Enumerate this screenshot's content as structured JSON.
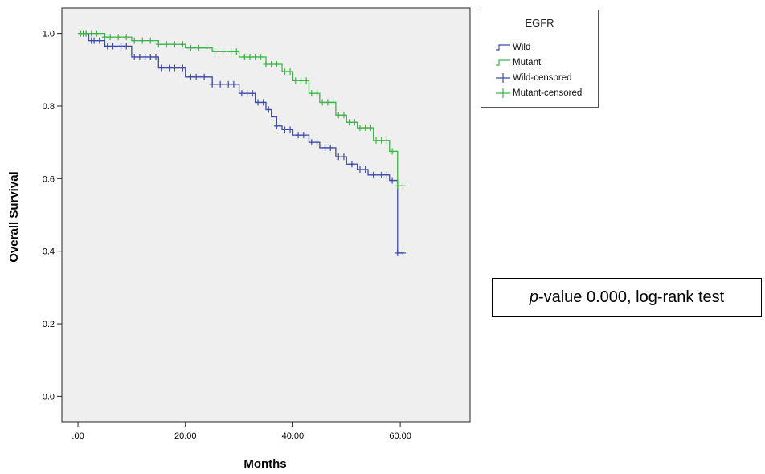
{
  "chart_data": {
    "type": "line",
    "step": true,
    "xlabel": "Months",
    "ylabel": "Overall Survival",
    "xlim": [
      -3,
      73
    ],
    "ylim": [
      -0.07,
      1.07
    ],
    "xticks": [
      0,
      20,
      40,
      60
    ],
    "xtick_labels": [
      ".00",
      "20.00",
      "40.00",
      "60.00"
    ],
    "yticks": [
      0.0,
      0.2,
      0.4,
      0.6,
      0.8,
      1.0
    ],
    "ytick_labels": [
      "0.0",
      "0.2",
      "0.4",
      "0.6",
      "0.8",
      "1.0"
    ],
    "grid": false,
    "plot_background": "#efefef",
    "legend": {
      "title": "EGFR",
      "placement": "right",
      "entries": [
        "Wild",
        "Mutant",
        "Wild-censored",
        "Mutant-censored"
      ]
    },
    "annotation": {
      "italic": "p",
      "text": "-value 0.000, log-rank test"
    },
    "series": [
      {
        "name": "Wild",
        "color": "#3b4ba8",
        "x": [
          0,
          2,
          5,
          10,
          15,
          20,
          25,
          30,
          33,
          35,
          36,
          37,
          38,
          40,
          43,
          45,
          48,
          50,
          52,
          54,
          56,
          58,
          59.5,
          59.5,
          60.5
        ],
        "y": [
          1.0,
          0.98,
          0.965,
          0.935,
          0.905,
          0.88,
          0.86,
          0.835,
          0.81,
          0.79,
          0.77,
          0.745,
          0.735,
          0.72,
          0.7,
          0.685,
          0.66,
          0.64,
          0.625,
          0.61,
          0.61,
          0.595,
          0.525,
          0.395,
          0.395
        ],
        "censored_x": [
          1,
          1.5,
          2.5,
          3,
          4,
          5.5,
          6.5,
          8,
          9,
          10.5,
          11.5,
          12.5,
          13.5,
          14.5,
          15.5,
          17,
          18,
          19.5,
          21,
          22,
          23.5,
          25,
          26.5,
          28,
          29,
          30.5,
          31.5,
          32.5,
          33.5,
          34.5,
          35.5,
          37,
          38.5,
          39.5,
          41,
          42,
          43.5,
          44.5,
          46,
          47,
          48.5,
          49.5,
          51,
          52.5,
          53.5,
          55,
          56.5,
          57.5,
          58.5,
          59.5,
          60.5
        ]
      },
      {
        "name": "Mutant",
        "color": "#3db546",
        "x": [
          0,
          5,
          10,
          15,
          20,
          25,
          30,
          35,
          38,
          40,
          43,
          45,
          48,
          50,
          52,
          55,
          57,
          58,
          59,
          59.5,
          60.5
        ],
        "y": [
          1.0,
          0.99,
          0.98,
          0.97,
          0.96,
          0.95,
          0.935,
          0.915,
          0.895,
          0.87,
          0.835,
          0.81,
          0.775,
          0.755,
          0.74,
          0.705,
          0.705,
          0.675,
          0.675,
          0.58,
          0.58
        ],
        "censored_x": [
          0.5,
          1.5,
          2.5,
          3.5,
          5,
          6,
          7.5,
          9,
          10.5,
          12,
          13.5,
          15,
          16.5,
          18,
          19.5,
          21,
          22.5,
          24,
          25.5,
          27,
          28.5,
          29.5,
          31,
          32,
          33,
          34,
          35,
          36,
          37,
          38.5,
          39.5,
          40.5,
          41.5,
          42.5,
          43.5,
          44.5,
          45.5,
          46.5,
          47.5,
          48.5,
          49.5,
          50.5,
          51.5,
          52.5,
          53.5,
          54.5,
          55.5,
          56.5,
          57.5,
          58.5,
          59.5,
          60.5
        ]
      }
    ]
  }
}
